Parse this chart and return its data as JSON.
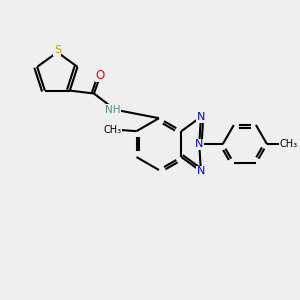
{
  "bg_color": "#efefef",
  "bond_color": "#000000",
  "atom_colors": {
    "S": "#c8a000",
    "O": "#ff0000",
    "N": "#0000ff",
    "NH": "#4a9090",
    "C": "#000000"
  },
  "figsize": [
    3.0,
    3.0
  ],
  "dpi": 100
}
